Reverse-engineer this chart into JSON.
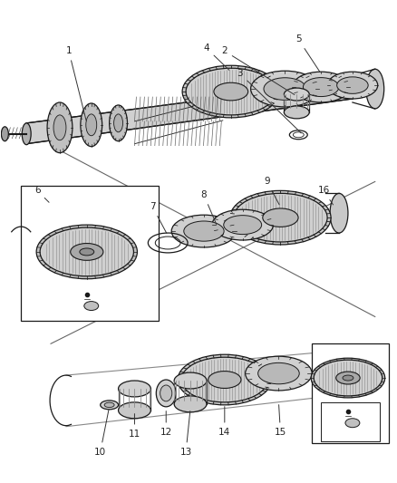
{
  "bg_color": "#ffffff",
  "line_color": "#1a1a1a",
  "fill_light": "#d8d8d8",
  "fill_mid": "#b8b8b8",
  "fill_dark": "#989898",
  "figsize": [
    4.38,
    5.33
  ],
  "dpi": 100,
  "shaft_color": "#cccccc",
  "gear_fill": "#c8c8c8",
  "gear_hatch": "#888888"
}
